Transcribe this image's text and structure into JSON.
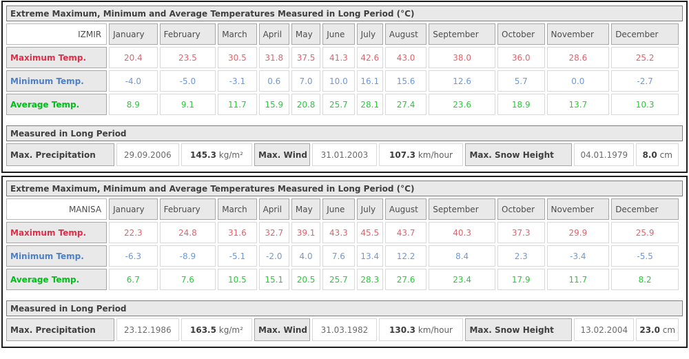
{
  "colors": {
    "max_temp_label": "#e02d48",
    "max_temp_value": "#e2636b",
    "min_temp_label": "#4c80c8",
    "min_temp_value": "#6d98d8",
    "avg_temp_label": "#00bf1a",
    "avg_temp_value": "#2cc83c",
    "header_bg": "#e9e9e9",
    "panel_border": "#1c1c1c"
  },
  "months": [
    "January",
    "February",
    "March",
    "April",
    "May",
    "June",
    "July",
    "August",
    "September",
    "October",
    "November",
    "December"
  ],
  "panels": [
    {
      "title": "Extreme Maximum, Minimum and Average Temperatures Measured in Long Period (°C)",
      "station": "IZMIR",
      "temp_rows": [
        {
          "label": "Maximum Temp.",
          "type": "max",
          "values": [
            "20.4",
            "23.5",
            "30.5",
            "31.8",
            "37.5",
            "41.3",
            "42.6",
            "43.0",
            "38.0",
            "36.0",
            "28.6",
            "25.2"
          ]
        },
        {
          "label": "Minimum Temp.",
          "type": "min",
          "values": [
            "-4.0",
            "-5.0",
            "-3.1",
            "0.6",
            "7.0",
            "10.0",
            "16.1",
            "15.6",
            "12.6",
            "5.7",
            "0.0",
            "-2.7"
          ]
        },
        {
          "label": "Average Temp.",
          "type": "avg",
          "values": [
            "8.9",
            "9.1",
            "11.7",
            "15.9",
            "20.8",
            "25.7",
            "28.1",
            "27.4",
            "23.6",
            "18.9",
            "13.7",
            "10.3"
          ]
        }
      ],
      "section_title": "Measured in Long Period",
      "extremes": [
        {
          "label": "Max. Precipitation",
          "date": "29.09.2006",
          "value": "145.3",
          "unit": "kg/m²"
        },
        {
          "label": "Max. Wind",
          "date": "31.01.2003",
          "value": "107.3",
          "unit": "km/hour"
        },
        {
          "label": "Max. Snow Height",
          "date": "04.01.1979",
          "value": "8.0",
          "unit": "cm"
        }
      ]
    },
    {
      "title": "Extreme Maximum, Minimum and Average Temperatures Measured in Long Period (°C)",
      "station": "MANISA",
      "temp_rows": [
        {
          "label": "Maximum Temp.",
          "type": "max",
          "values": [
            "22.3",
            "24.8",
            "31.6",
            "32.7",
            "39.1",
            "43.3",
            "45.5",
            "43.7",
            "40.3",
            "37.3",
            "29.9",
            "25.9"
          ]
        },
        {
          "label": "Minimum Temp.",
          "type": "min",
          "values": [
            "-6.3",
            "-8.9",
            "-5.1",
            "-2.0",
            "4.0",
            "7.6",
            "13.4",
            "12.2",
            "8.4",
            "2.3",
            "-3.4",
            "-5.5"
          ]
        },
        {
          "label": "Average Temp.",
          "type": "avg",
          "values": [
            "6.7",
            "7.6",
            "10.5",
            "15.1",
            "20.5",
            "25.7",
            "28.3",
            "27.6",
            "23.4",
            "17.9",
            "11.7",
            "8.2"
          ]
        }
      ],
      "section_title": "Measured in Long Period",
      "extremes": [
        {
          "label": "Max. Precipitation",
          "date": "23.12.1986",
          "value": "163.5",
          "unit": "kg/m²"
        },
        {
          "label": "Max. Wind",
          "date": "31.03.1982",
          "value": "130.3",
          "unit": "km/hour"
        },
        {
          "label": "Max. Snow Height",
          "date": "13.02.2004",
          "value": "23.0",
          "unit": "cm"
        }
      ]
    }
  ]
}
